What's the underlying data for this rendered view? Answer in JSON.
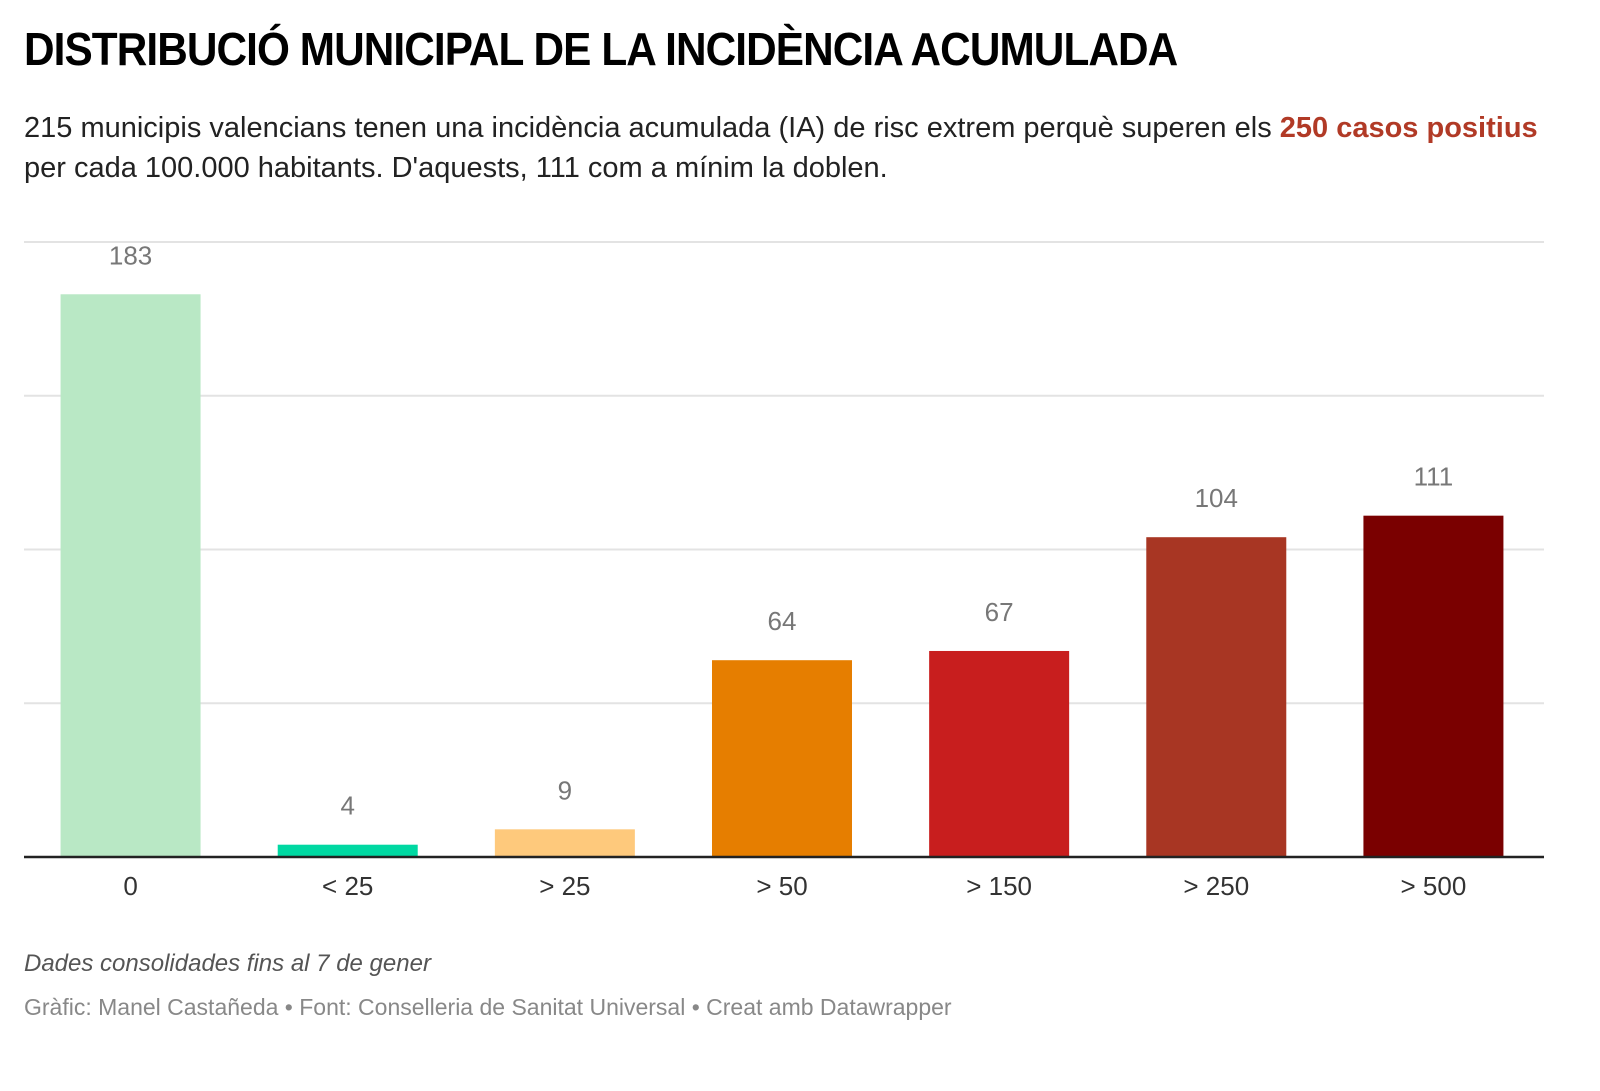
{
  "header": {
    "title": "DISTRIBUCIÓ MUNICIPAL DE LA INCIDÈNCIA ACUMULADA",
    "subtitle_pre": "215 municipis valencians tenen una incidència acumulada (IA) de risc extrem perquè superen els ",
    "subtitle_highlight": "250 casos positius",
    "subtitle_post": " per cada 100.000 habitants. D'aquests, 111 com a mínim la doblen.",
    "highlight_color": "#b13a26"
  },
  "chart_data": {
    "type": "bar",
    "title": "DISTRIBUCIÓ MUNICIPAL DE LA INCIDÈNCIA ACUMULADA",
    "xlabel": "",
    "ylabel": "",
    "categories": [
      "0",
      "< 25",
      "> 25",
      "> 50",
      "> 150",
      "> 250",
      "> 500"
    ],
    "values": [
      183,
      4,
      9,
      64,
      67,
      104,
      111
    ],
    "colors": [
      "#b9e8c5",
      "#00d8a2",
      "#fec97c",
      "#e67e00",
      "#c81e1e",
      "#a83623",
      "#7a0000"
    ],
    "ylim": [
      0,
      200
    ],
    "gridlines": [
      50,
      100,
      150,
      200
    ],
    "grid": true,
    "y_tick_labels_shown": false,
    "data_labels": true,
    "legend": "none"
  },
  "footer": {
    "notes": "Dades consolidades fins al 7 de gener",
    "byline": "Gràfic: Manel Castañeda • Font: Conselleria de Sanitat Universal • Creat amb Datawrapper"
  }
}
